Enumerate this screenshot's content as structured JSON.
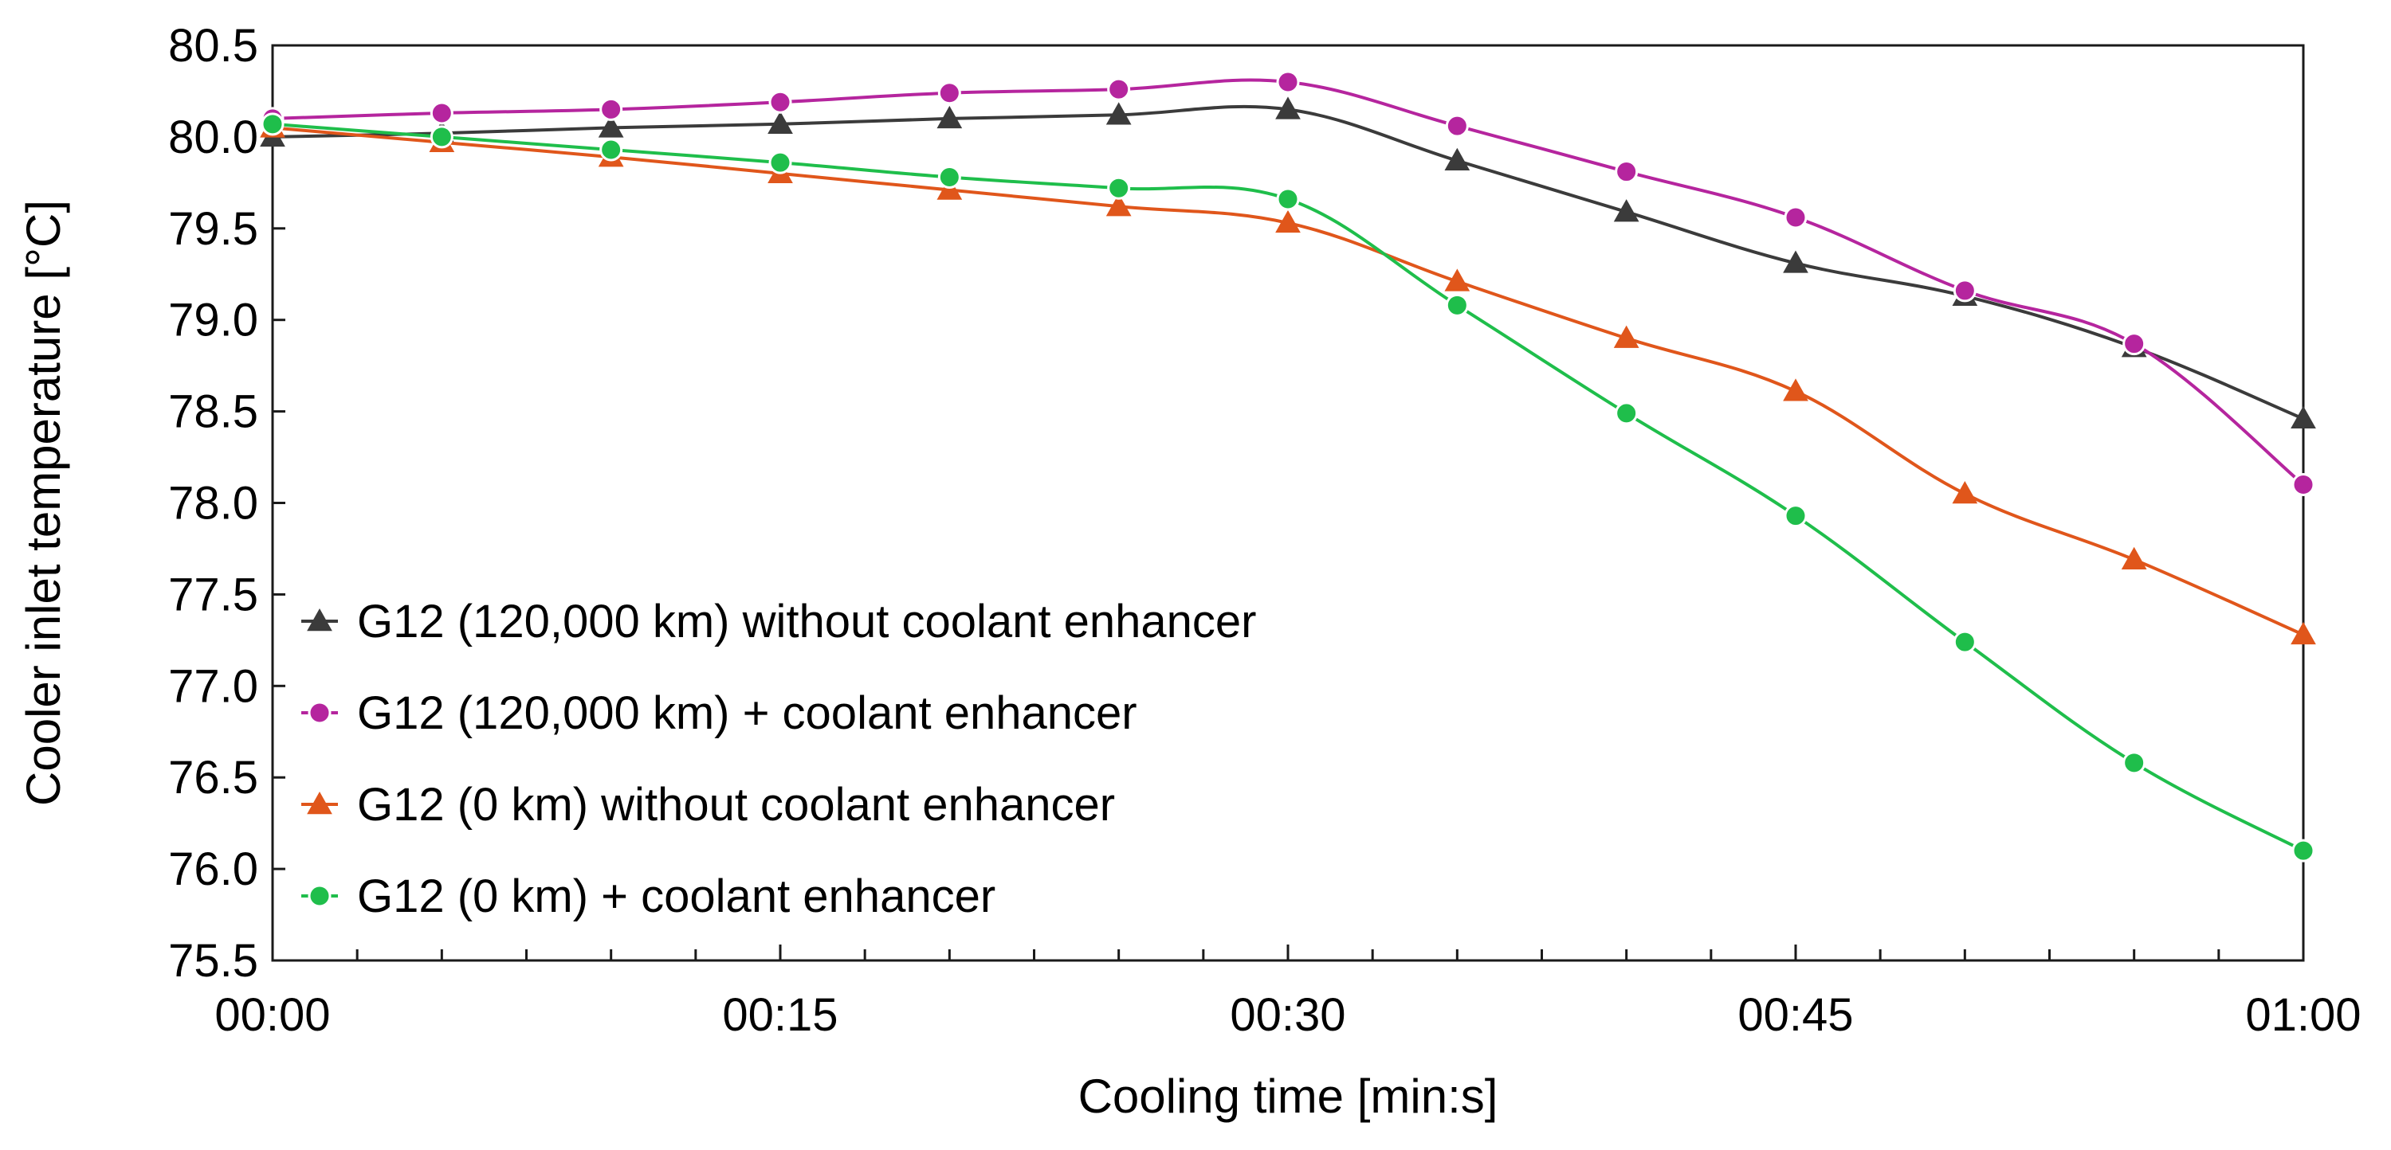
{
  "chart_data": {
    "type": "line",
    "title": "",
    "xlabel": "Cooling time [min:s]",
    "ylabel": "Cooler inlet temperature [°C]",
    "x_seconds": [
      0,
      5,
      10,
      15,
      20,
      25,
      30,
      35,
      40,
      45,
      50,
      55,
      60
    ],
    "x_ticks": [
      {
        "value": 0,
        "label": "00:00"
      },
      {
        "value": 15,
        "label": "00:15"
      },
      {
        "value": 30,
        "label": "00:30"
      },
      {
        "value": 45,
        "label": "00:45"
      },
      {
        "value": 60,
        "label": "01:00"
      }
    ],
    "x_minor_step": 2.5,
    "xlim": [
      0,
      60
    ],
    "ylim": [
      75.5,
      80.5
    ],
    "y_ticks": [
      "75.5",
      "76.0",
      "76.5",
      "77.0",
      "77.5",
      "78.0",
      "78.5",
      "79.0",
      "79.5",
      "80.0",
      "80.5"
    ],
    "grid": false,
    "legend_position": "lower-left",
    "series": [
      {
        "name": "G12 (120,000 km) without coolant enhancer",
        "color": "#3b3b3b",
        "marker": "triangle",
        "values": [
          80.0,
          80.02,
          80.05,
          80.07,
          80.1,
          80.12,
          80.15,
          79.87,
          79.59,
          79.31,
          79.13,
          78.85,
          78.46
        ]
      },
      {
        "name": "G12 (120,000 km) + coolant enhancer",
        "color": "#b5259e",
        "marker": "circle",
        "values": [
          80.1,
          80.13,
          80.15,
          80.19,
          80.24,
          80.26,
          80.3,
          80.06,
          79.81,
          79.56,
          79.16,
          78.87,
          78.1
        ]
      },
      {
        "name": "G12 (0 km) without coolant enhancer",
        "color": "#e0561b",
        "marker": "triangle",
        "values": [
          80.05,
          79.97,
          79.89,
          79.8,
          79.71,
          79.62,
          79.53,
          79.21,
          78.9,
          78.61,
          78.05,
          77.69,
          77.28
        ]
      },
      {
        "name": "G12 (0 km) + coolant enhancer",
        "color": "#1fbe4b",
        "marker": "circle",
        "values": [
          80.07,
          80.0,
          79.93,
          79.86,
          79.78,
          79.72,
          79.66,
          79.08,
          78.49,
          77.93,
          77.24,
          76.58,
          76.1
        ]
      }
    ]
  }
}
